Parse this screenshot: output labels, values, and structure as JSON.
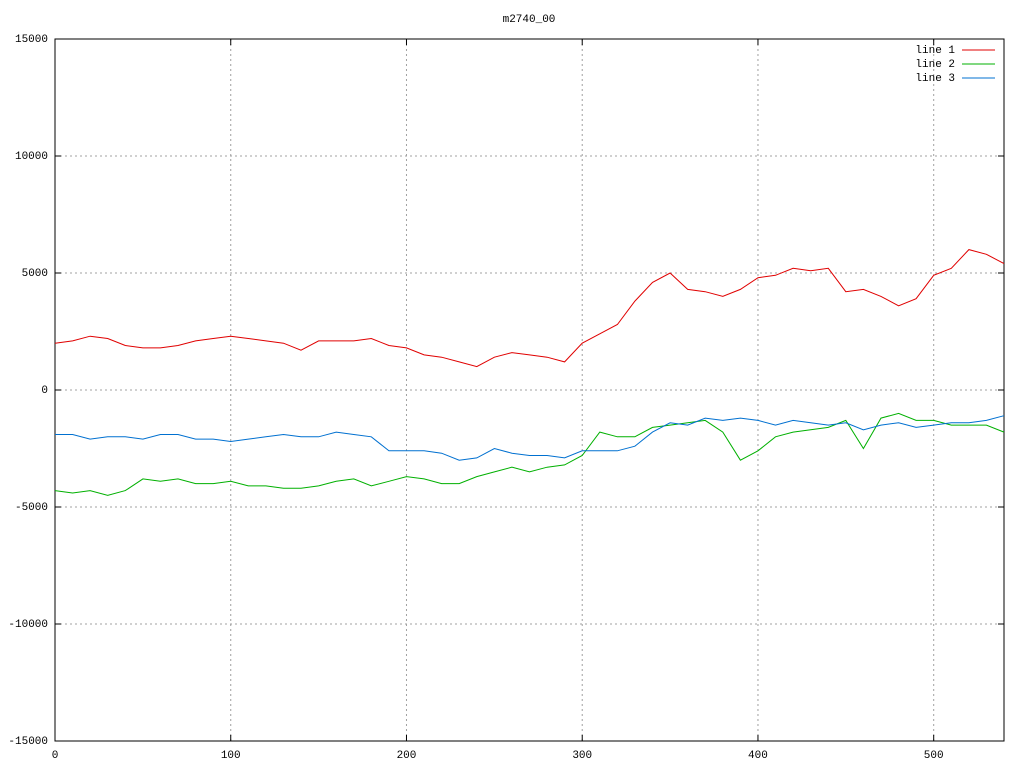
{
  "chart_data": {
    "type": "line",
    "title": "m2740_00",
    "x": [
      0,
      10,
      20,
      30,
      40,
      50,
      60,
      70,
      80,
      90,
      100,
      110,
      120,
      130,
      140,
      150,
      160,
      170,
      180,
      190,
      200,
      210,
      220,
      230,
      240,
      250,
      260,
      270,
      280,
      290,
      300,
      310,
      320,
      330,
      340,
      350,
      360,
      370,
      380,
      390,
      400,
      410,
      420,
      430,
      440,
      450,
      460,
      470,
      480,
      490,
      500,
      510,
      520,
      530,
      540
    ],
    "series": [
      {
        "name": "line 1",
        "color": "#e00000",
        "values": [
          2000,
          2100,
          2300,
          2200,
          1900,
          1800,
          1800,
          1900,
          2100,
          2200,
          2300,
          2200,
          2100,
          2000,
          1700,
          2100,
          2100,
          2100,
          2200,
          1900,
          1800,
          1500,
          1400,
          1200,
          1000,
          1400,
          1600,
          1500,
          1400,
          1200,
          2000,
          2400,
          2800,
          3800,
          4600,
          5000,
          4300,
          4200,
          4000,
          4300,
          4800,
          4900,
          5200,
          5100,
          5200,
          4200,
          4300,
          4000,
          3600,
          3900,
          4900,
          5200,
          6000,
          5800,
          5400
        ]
      },
      {
        "name": "line 2",
        "color": "#00b000",
        "values": [
          -4300,
          -4400,
          -4300,
          -4500,
          -4300,
          -3800,
          -3900,
          -3800,
          -4000,
          -4000,
          -3900,
          -4100,
          -4100,
          -4200,
          -4200,
          -4100,
          -3900,
          -3800,
          -4100,
          -3900,
          -3700,
          -3800,
          -4000,
          -4000,
          -3700,
          -3500,
          -3300,
          -3500,
          -3300,
          -3200,
          -2800,
          -1800,
          -2000,
          -2000,
          -1600,
          -1500,
          -1400,
          -1300,
          -1800,
          -3000,
          -2600,
          -2000,
          -1800,
          -1700,
          -1600,
          -1300,
          -2500,
          -1200,
          -1000,
          -1300,
          -1300,
          -1500,
          -1500,
          -1500,
          -1800
        ]
      },
      {
        "name": "line 3",
        "color": "#0070d0",
        "values": [
          -1900,
          -1900,
          -2100,
          -2000,
          -2000,
          -2100,
          -1900,
          -1900,
          -2100,
          -2100,
          -2200,
          -2100,
          -2000,
          -1900,
          -2000,
          -2000,
          -1800,
          -1900,
          -2000,
          -2600,
          -2600,
          -2600,
          -2700,
          -3000,
          -2900,
          -2500,
          -2700,
          -2800,
          -2800,
          -2900,
          -2600,
          -2600,
          -2600,
          -2400,
          -1800,
          -1400,
          -1500,
          -1200,
          -1300,
          -1200,
          -1300,
          -1500,
          -1300,
          -1400,
          -1500,
          -1400,
          -1700,
          -1500,
          -1400,
          -1600,
          -1500,
          -1400,
          -1400,
          -1300,
          -1100
        ]
      }
    ],
    "xlim": [
      0,
      540
    ],
    "xticks": [
      0,
      100,
      200,
      300,
      400,
      500
    ],
    "ylim": [
      -15000,
      15000
    ],
    "yticks": [
      -15000,
      -10000,
      -5000,
      0,
      5000,
      10000,
      15000
    ],
    "grid": true,
    "legend": "top-right"
  }
}
